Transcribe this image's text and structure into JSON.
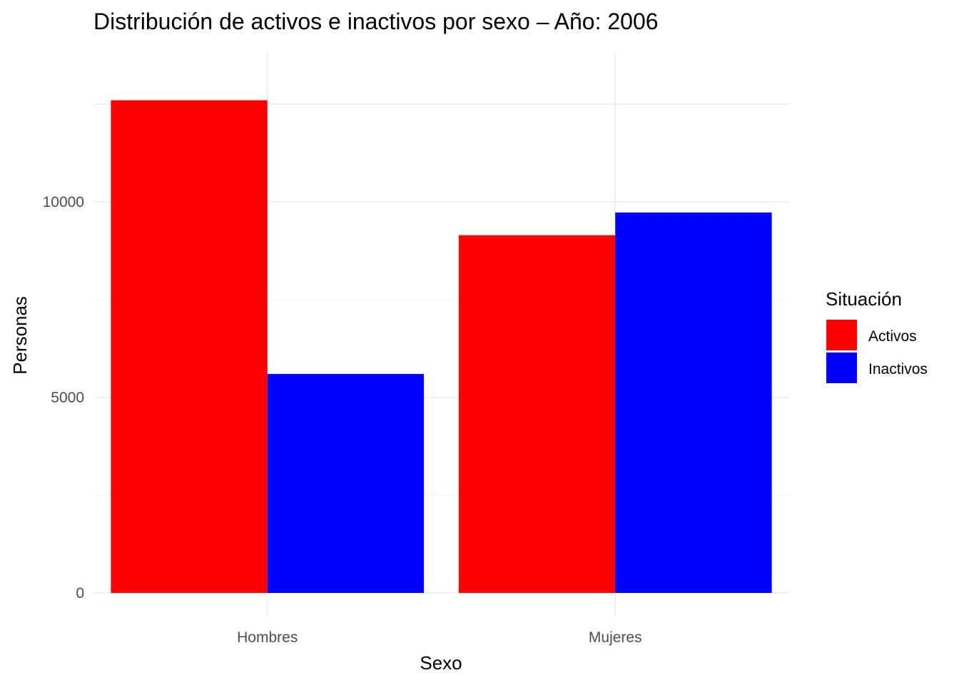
{
  "chart_data": {
    "type": "bar",
    "title": "Distribución de activos e inactivos por sexo – Año: 2006",
    "xlabel": "Sexo",
    "ylabel": "Personas",
    "categories": [
      "Hombres",
      "Mujeres"
    ],
    "series": [
      {
        "name": "Activos",
        "color": "#ff0000",
        "values": [
          12600,
          9150
        ]
      },
      {
        "name": "Inactivos",
        "color": "#0000ff",
        "values": [
          5600,
          9730
        ]
      }
    ],
    "ylim": [
      0,
      13800
    ],
    "yticks": [
      0,
      5000,
      10000
    ],
    "grid": true,
    "legend": {
      "title": "Situación",
      "position": "right"
    }
  }
}
